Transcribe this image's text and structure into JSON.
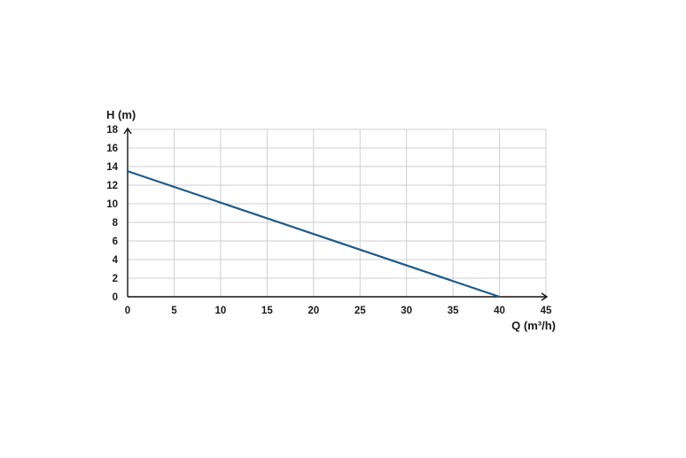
{
  "chart_data": {
    "type": "line",
    "title": "",
    "xlabel": "Q (m³/h)",
    "ylabel": "H (m)",
    "xlim": [
      0,
      45
    ],
    "ylim": [
      0,
      18
    ],
    "x_ticks": [
      "0",
      "5",
      "10",
      "15",
      "20",
      "25",
      "30",
      "35",
      "40",
      "45"
    ],
    "y_ticks": [
      "0",
      "2",
      "4",
      "6",
      "8",
      "10",
      "12",
      "14",
      "16",
      "18"
    ],
    "grid": true,
    "legend": "none",
    "series": [
      {
        "color": "#1f5a8a",
        "points": [
          [
            0,
            13.5
          ],
          [
            40,
            0
          ]
        ]
      }
    ]
  }
}
